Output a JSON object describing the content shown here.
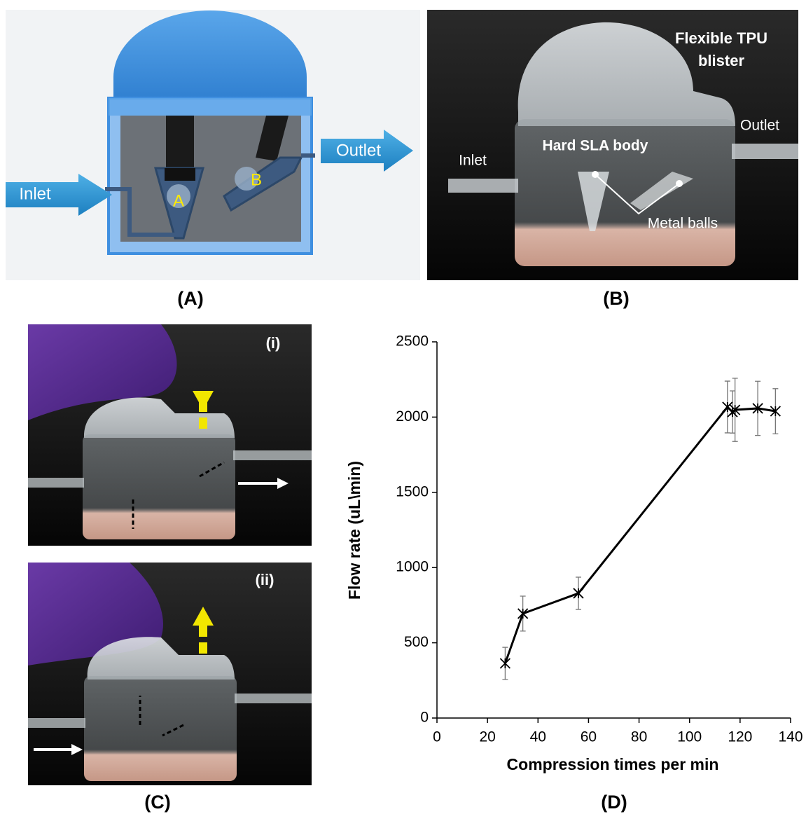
{
  "panels": {
    "a": {
      "label": "(A)",
      "inlet": "Inlet",
      "outlet": "Outlet",
      "valve_a": "A",
      "valve_b": "B"
    },
    "b": {
      "label": "(B)",
      "blister": [
        "Flexible TPU",
        "blister"
      ],
      "outlet": "Outlet",
      "inlet": "Inlet",
      "body": "Hard SLA body",
      "balls": "Metal balls"
    },
    "c": {
      "label": "(C)",
      "top": "(i)",
      "bottom": "(ii)"
    },
    "d": {
      "label": "(D)"
    }
  },
  "chart_data": {
    "type": "line",
    "x_label": "Compression times per min",
    "y_label": "Flow rate (uL\\min)",
    "x": [
      27,
      34,
      56,
      115,
      117,
      118,
      127,
      134
    ],
    "series": [
      {
        "color": "#000000",
        "values": [
          363,
          694,
          829,
          2067,
          2034,
          2048,
          2058,
          2039
        ],
        "errors": [
          107,
          116,
          107,
          172,
          140,
          210,
          180,
          150
        ]
      }
    ],
    "xlim": [
      0,
      140
    ],
    "xticks": [
      0,
      20,
      40,
      60,
      80,
      100,
      120,
      140
    ],
    "ylim": [
      0,
      2500
    ],
    "yticks": [
      0,
      500,
      1000,
      1500,
      2000,
      2500
    ],
    "grid": false
  }
}
